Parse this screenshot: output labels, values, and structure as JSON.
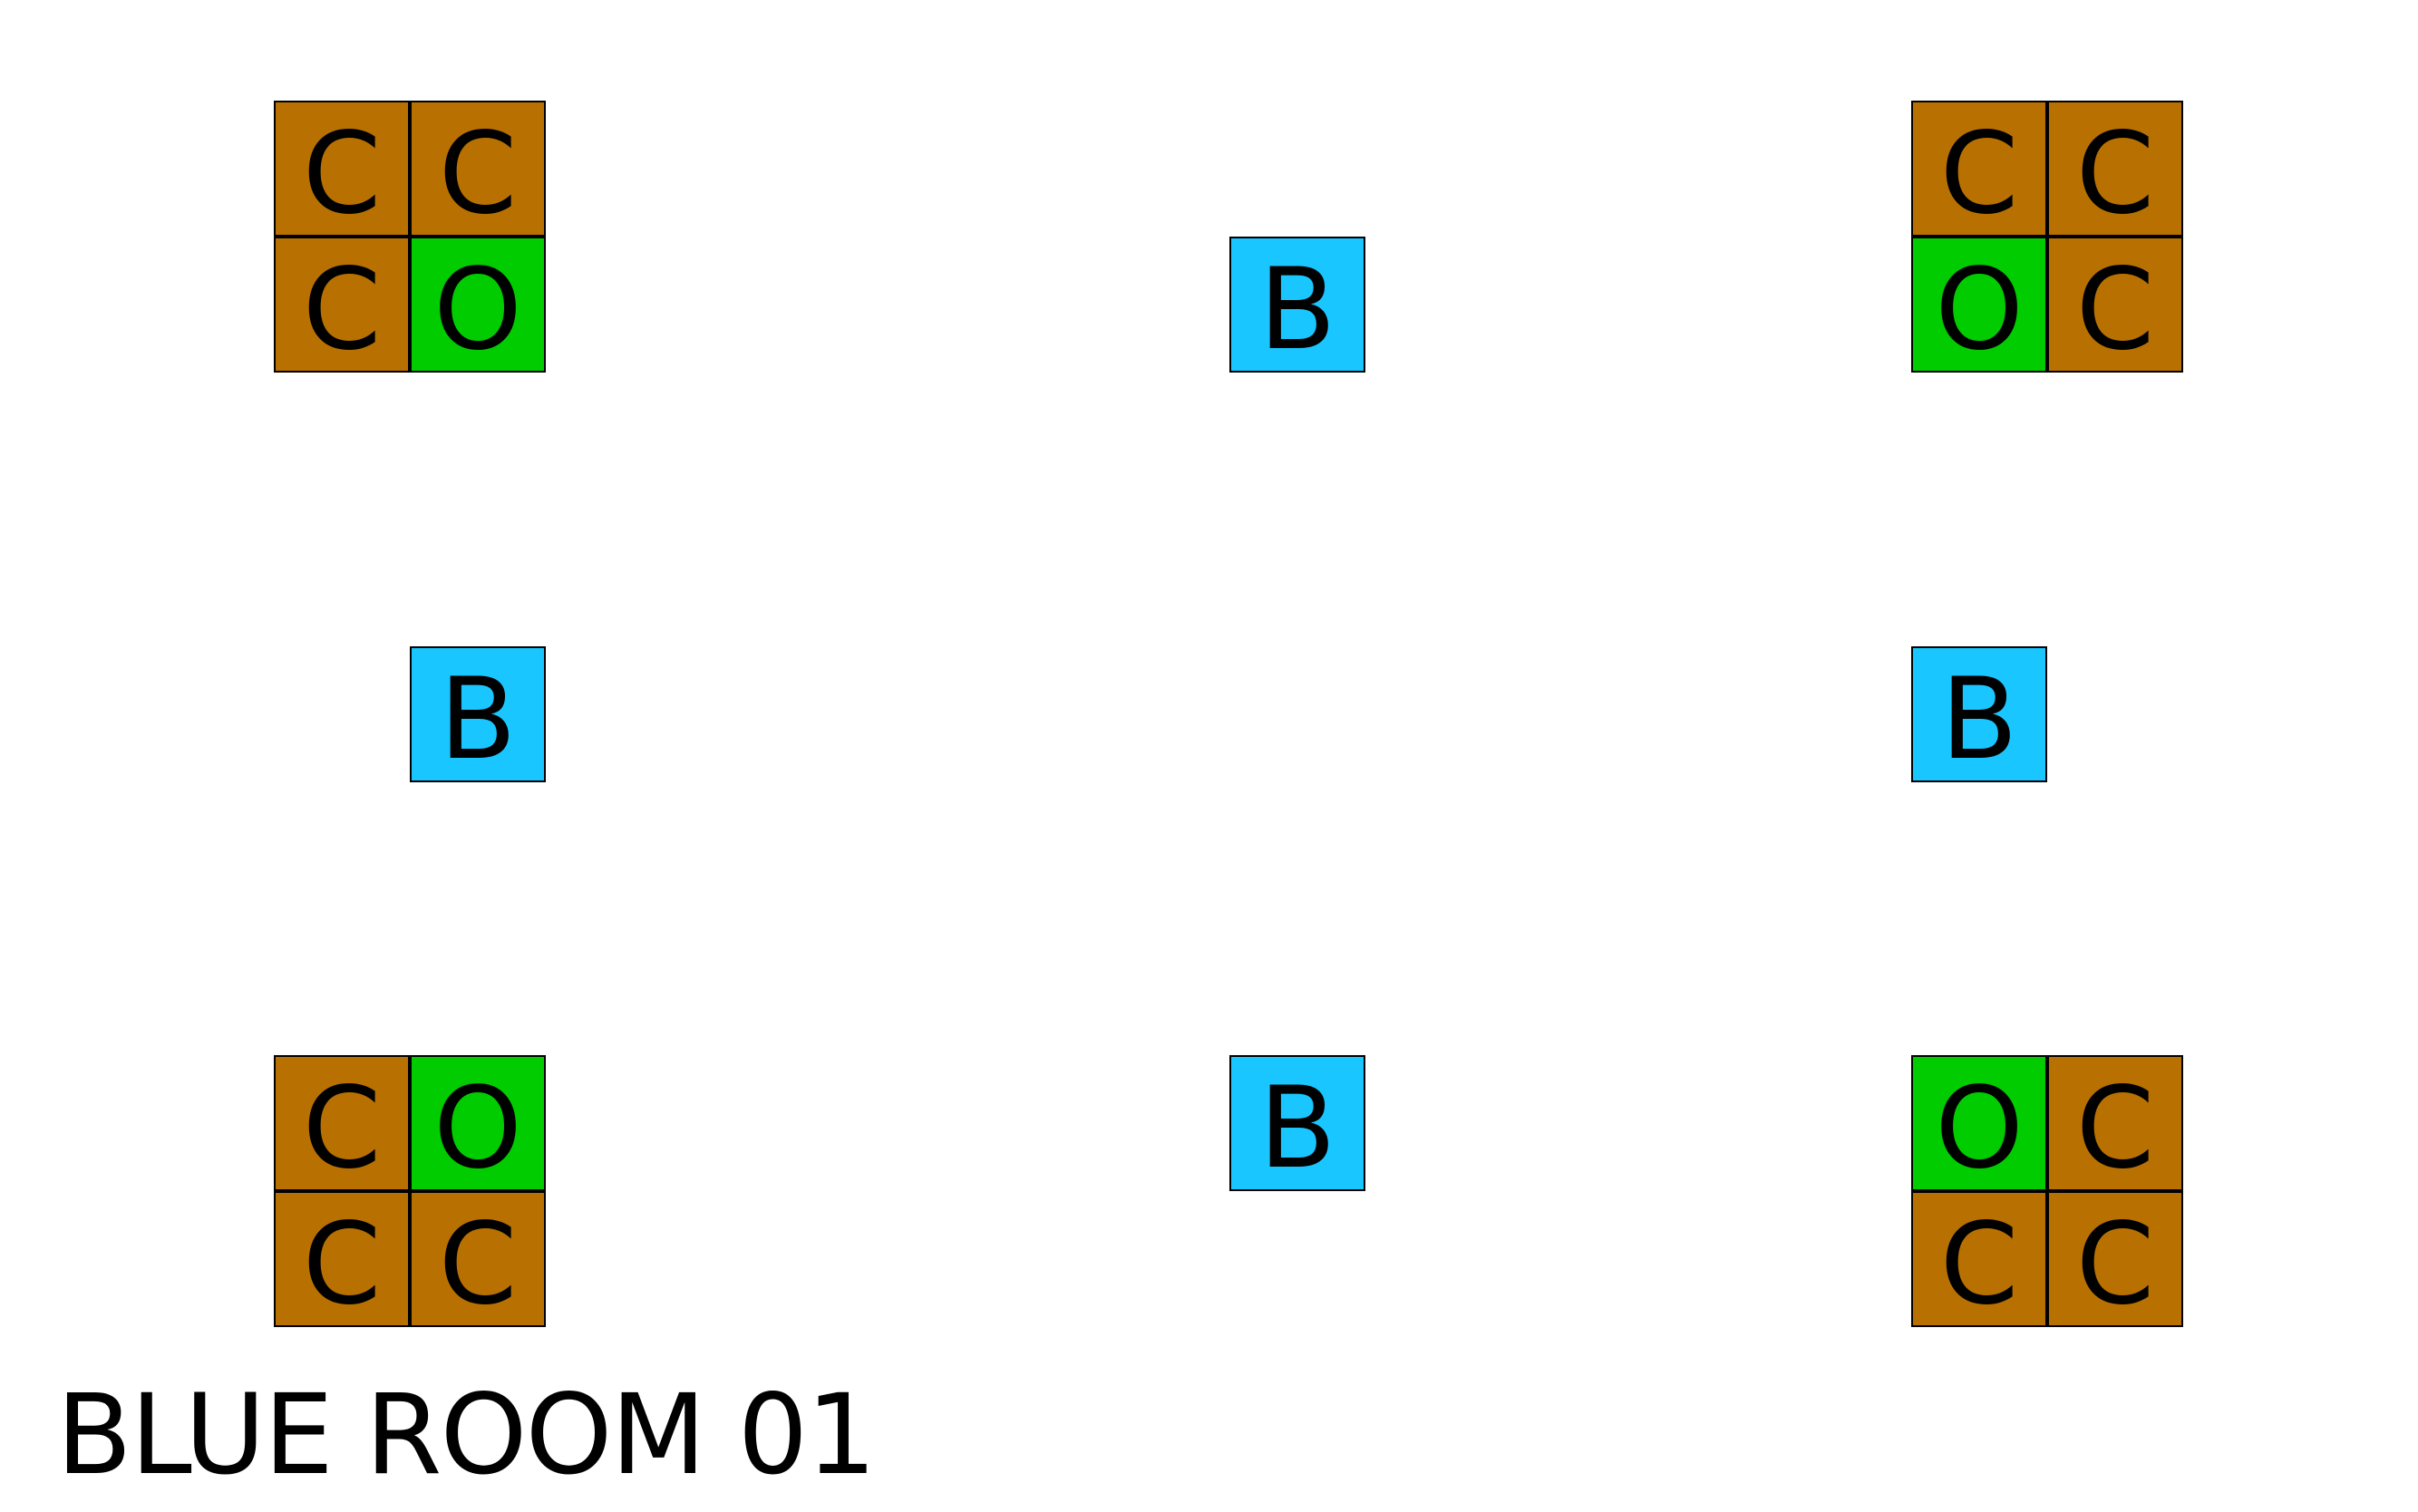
{
  "room": {
    "title": "BLUE ROOM 01"
  },
  "colors": {
    "C": "#b87100",
    "O": "#00cc00",
    "B": "#1ac6ff"
  },
  "cells": [
    {
      "id": "tl-c1",
      "label": "C",
      "kind": "C"
    },
    {
      "id": "tl-c2",
      "label": "C",
      "kind": "C"
    },
    {
      "id": "tl-c3",
      "label": "C",
      "kind": "C"
    },
    {
      "id": "tl-o",
      "label": "O",
      "kind": "O"
    },
    {
      "id": "tc-b",
      "label": "B",
      "kind": "B"
    },
    {
      "id": "tr-c1",
      "label": "C",
      "kind": "C"
    },
    {
      "id": "tr-c2",
      "label": "C",
      "kind": "C"
    },
    {
      "id": "tr-o",
      "label": "O",
      "kind": "O"
    },
    {
      "id": "tr-c3",
      "label": "C",
      "kind": "C"
    },
    {
      "id": "ml-b",
      "label": "B",
      "kind": "B"
    },
    {
      "id": "mr-b",
      "label": "B",
      "kind": "B"
    },
    {
      "id": "bl-c1",
      "label": "C",
      "kind": "C"
    },
    {
      "id": "bl-o",
      "label": "O",
      "kind": "O"
    },
    {
      "id": "bl-c2",
      "label": "C",
      "kind": "C"
    },
    {
      "id": "bl-c3",
      "label": "C",
      "kind": "C"
    },
    {
      "id": "bc-b",
      "label": "B",
      "kind": "B"
    },
    {
      "id": "br-o",
      "label": "O",
      "kind": "O"
    },
    {
      "id": "br-c1",
      "label": "C",
      "kind": "C"
    },
    {
      "id": "br-c2",
      "label": "C",
      "kind": "C"
    },
    {
      "id": "br-c3",
      "label": "C",
      "kind": "C"
    }
  ]
}
